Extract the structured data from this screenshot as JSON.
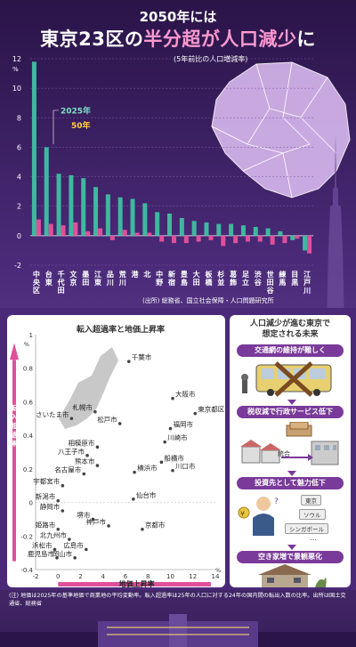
{
  "header": {
    "line1": "2050年には",
    "line2a": "東京23区の",
    "line2b": "半分超が人口減少",
    "line2c": "に",
    "subtitle": "(5年前比の人口増減率)",
    "y_unit": "%",
    "legend_2025": "2025年",
    "legend_2050": "50年",
    "source": "(出所) 総務省、国立社会保障・人口問題研究所"
  },
  "colors": {
    "teal": "#3fb8a0",
    "pink": "#e0509a",
    "bg": "#3a1f5c"
  },
  "chart_data": [
    {
      "type": "bar",
      "title": "",
      "subtitle": "(5年前比の人口増減率)",
      "ylabel": "%",
      "ylim": [
        -2,
        12
      ],
      "yticks": [
        -2,
        0,
        2,
        4,
        6,
        8,
        10,
        12
      ],
      "categories": [
        "中央区",
        "台東",
        "千代田",
        "文京",
        "墨田",
        "江東",
        "品川",
        "荒川",
        "港",
        "北",
        "中野",
        "新宿",
        "豊島",
        "大田",
        "板橋",
        "杉並",
        "葛飾",
        "足立",
        "渋谷",
        "世田谷",
        "練馬",
        "目黒",
        "江戸川"
      ],
      "series": [
        {
          "name": "2025年",
          "values": [
            11.8,
            6.0,
            4.2,
            4.1,
            3.9,
            3.3,
            2.8,
            2.6,
            2.5,
            2.2,
            1.6,
            1.5,
            1.2,
            1.0,
            0.9,
            0.8,
            0.8,
            0.7,
            0.6,
            0.5,
            0.3,
            -0.3,
            -1.0
          ]
        },
        {
          "name": "50年",
          "values": [
            1.1,
            0.8,
            0.7,
            0.9,
            0.3,
            0.5,
            -0.3,
            0.4,
            0.2,
            0.2,
            -0.4,
            -0.5,
            -0.5,
            -0.4,
            -0.3,
            -0.7,
            -0.5,
            -0.4,
            -0.4,
            -0.6,
            -0.5,
            -0.2,
            -1.2
          ]
        }
      ]
    },
    {
      "type": "scatter",
      "title": "転入超過率と地価上昇率",
      "xlabel": "地価上昇率",
      "ylabel": "転入超過率",
      "y_unit": "%",
      "x_unit": "%",
      "xlim": [
        -2,
        14
      ],
      "ylim": [
        -0.4,
        1.0
      ],
      "xticks": [
        -2,
        0,
        2,
        4,
        6,
        8,
        10,
        12,
        14
      ],
      "yticks": [
        -0.4,
        -0.2,
        0,
        0.2,
        0.4,
        0.6,
        0.8,
        1.0
      ],
      "points": [
        {
          "label": "千葉市",
          "x": 6.3,
          "y": 0.84
        },
        {
          "label": "大阪市",
          "x": 10.2,
          "y": 0.62
        },
        {
          "label": "札幌市",
          "x": 3.3,
          "y": 0.54
        },
        {
          "label": "東京都区部",
          "x": 12.2,
          "y": 0.53
        },
        {
          "label": "さいたま市",
          "x": 1.2,
          "y": 0.5
        },
        {
          "label": "松戸市",
          "x": 5.5,
          "y": 0.47
        },
        {
          "label": "福岡市",
          "x": 10.0,
          "y": 0.44
        },
        {
          "label": "川崎市",
          "x": 9.5,
          "y": 0.36
        },
        {
          "label": "相模原市",
          "x": 3.5,
          "y": 0.33
        },
        {
          "label": "八王子市",
          "x": 2.6,
          "y": 0.28
        },
        {
          "label": "船橋市",
          "x": 9.2,
          "y": 0.24
        },
        {
          "label": "熊本市",
          "x": 3.5,
          "y": 0.22
        },
        {
          "label": "川口市",
          "x": 10.2,
          "y": 0.19
        },
        {
          "label": "名古屋市",
          "x": 2.3,
          "y": 0.17
        },
        {
          "label": "横浜市",
          "x": 6.8,
          "y": 0.18
        },
        {
          "label": "宇都宮市",
          "x": 0.4,
          "y": 0.1
        },
        {
          "label": "仙台市",
          "x": 6.7,
          "y": 0.02
        },
        {
          "label": "新潟市",
          "x": 0.0,
          "y": 0.01
        },
        {
          "label": "静岡市",
          "x": 0.4,
          "y": -0.05
        },
        {
          "label": "堺市",
          "x": 3.1,
          "y": -0.1
        },
        {
          "label": "神戸市",
          "x": 4.5,
          "y": -0.14
        },
        {
          "label": "京都市",
          "x": 7.5,
          "y": -0.16
        },
        {
          "label": "姫路市",
          "x": 0.0,
          "y": -0.16
        },
        {
          "label": "北九州市",
          "x": 1.0,
          "y": -0.22
        },
        {
          "label": "浜松市",
          "x": -0.3,
          "y": -0.28
        },
        {
          "label": "広島市",
          "x": 2.5,
          "y": -0.28
        },
        {
          "label": "鹿児島市",
          "x": -0.1,
          "y": -0.33
        },
        {
          "label": "岡山市",
          "x": 1.5,
          "y": -0.33
        }
      ]
    }
  ],
  "right_panel": {
    "title_line1": "人口減少が進む東京で",
    "title_line2": "想定される未来",
    "item1": "交通網の維持が難しく",
    "item2": "税収減で行政サービス低下",
    "item2_label": "統合",
    "item3": "投資先として魅力低下",
    "cities": [
      "東京",
      "ソウル",
      "シンガポール"
    ],
    "ellipsis": "…",
    "item4": "空き家増で景観悪化"
  },
  "note": "(注) 地価は2025年の基準地価で商業地の平均変動率。転入超過率は25年の人口に対する24年の国内間の転出入数の比率。出所は国土交通省、総務省"
}
